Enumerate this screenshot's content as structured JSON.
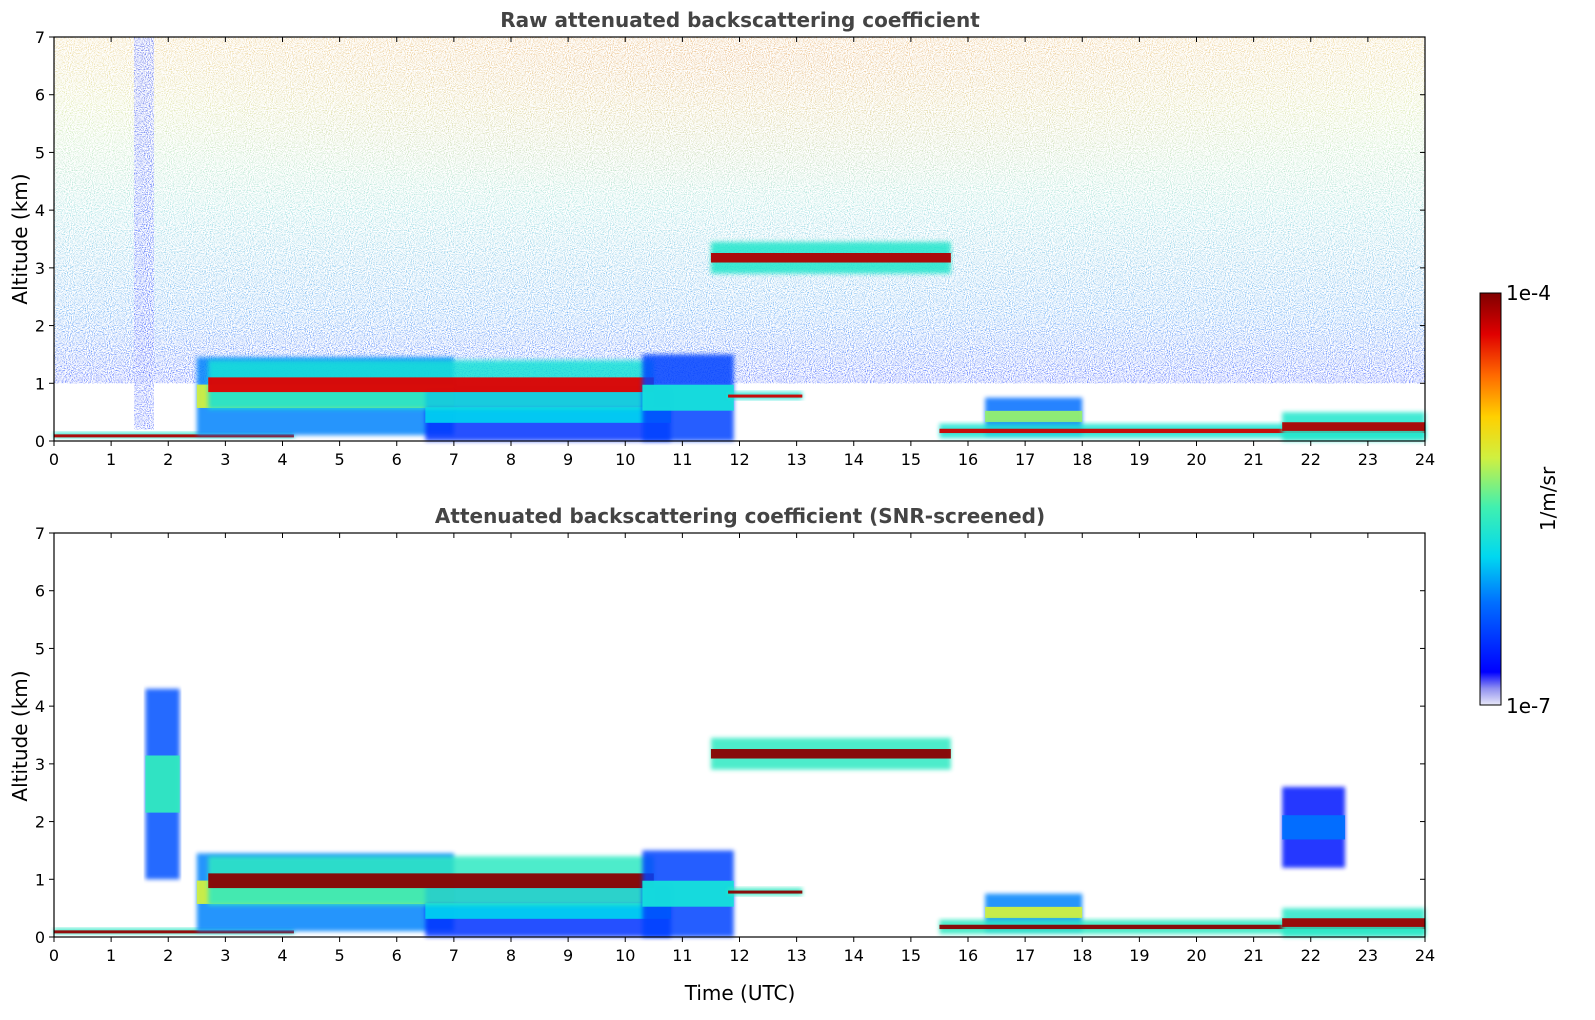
{
  "chart_data": [
    {
      "type": "heatmap",
      "title": "Raw attenuated backscattering coefficient",
      "xlabel": "",
      "ylabel": "Altitude (km)",
      "xlim": [
        0,
        24
      ],
      "ylim": [
        0,
        7
      ],
      "xticks": [
        "0",
        "1",
        "2",
        "3",
        "4",
        "5",
        "6",
        "7",
        "8",
        "9",
        "10",
        "11",
        "12",
        "13",
        "14",
        "15",
        "16",
        "17",
        "18",
        "19",
        "20",
        "21",
        "22",
        "23",
        "24"
      ],
      "yticks": [
        "0",
        "1",
        "2",
        "3",
        "4",
        "5",
        "6",
        "7"
      ],
      "noise_background": true,
      "features": [
        {
          "name": "surface layer",
          "t0": 0.0,
          "t1": 4.2,
          "z0": 0.05,
          "z1": 0.15,
          "level": 0.95
        },
        {
          "name": "boundary layer aerosol",
          "t0": 2.5,
          "t1": 7.0,
          "z0": 0.1,
          "z1": 1.45,
          "level": 0.6
        },
        {
          "name": "aerosol dip layer",
          "t0": 6.5,
          "t1": 10.8,
          "z0": 0.0,
          "z1": 0.9,
          "level": 0.35
        },
        {
          "name": "elevated layer top",
          "t0": 2.7,
          "t1": 10.5,
          "z0": 0.55,
          "z1": 1.4,
          "level": 0.9
        },
        {
          "name": "cloud 11h",
          "t0": 10.3,
          "t1": 11.9,
          "z0": 0.0,
          "z1": 1.5,
          "level": 0.4
        },
        {
          "name": "cloud 12h layer",
          "t0": 11.8,
          "t1": 13.1,
          "z0": 0.72,
          "z1": 0.85,
          "level": 0.92
        },
        {
          "name": "mid cloud",
          "t0": 11.5,
          "t1": 15.7,
          "z0": 2.9,
          "z1": 3.45,
          "level": 0.95
        },
        {
          "name": "afternoon layer",
          "t0": 16.3,
          "t1": 18.0,
          "z0": 0.1,
          "z1": 0.75,
          "level": 0.55
        },
        {
          "name": "night surface layer",
          "t0": 15.5,
          "t1": 24.0,
          "z0": 0.05,
          "z1": 0.3,
          "level": 0.92
        },
        {
          "name": "late surface growth",
          "t0": 21.5,
          "t1": 24.0,
          "z0": 0.0,
          "z1": 0.5,
          "level": 0.95
        }
      ]
    },
    {
      "type": "heatmap",
      "title": "Attenuated backscattering coefficient (SNR-screened)",
      "xlabel": "Time (UTC)",
      "ylabel": "Altitude (km)",
      "xlim": [
        0,
        24
      ],
      "ylim": [
        0,
        7
      ],
      "xticks": [
        "0",
        "1",
        "2",
        "3",
        "4",
        "5",
        "6",
        "7",
        "8",
        "9",
        "10",
        "11",
        "12",
        "13",
        "14",
        "15",
        "16",
        "17",
        "18",
        "19",
        "20",
        "21",
        "22",
        "23",
        "24"
      ],
      "yticks": [
        "0",
        "1",
        "2",
        "3",
        "4",
        "5",
        "6",
        "7"
      ],
      "noise_background": false,
      "features": [
        {
          "name": "surface layer",
          "t0": 0.0,
          "t1": 4.2,
          "z0": 0.05,
          "z1": 0.15,
          "level": 0.98
        },
        {
          "name": "boundary layer aerosol",
          "t0": 2.5,
          "t1": 7.0,
          "z0": 0.1,
          "z1": 1.45,
          "level": 0.6
        },
        {
          "name": "aerosol dip layer",
          "t0": 6.5,
          "t1": 10.8,
          "z0": 0.0,
          "z1": 0.9,
          "level": 0.35
        },
        {
          "name": "elevated layer top",
          "t0": 2.7,
          "t1": 10.5,
          "z0": 0.55,
          "z1": 1.4,
          "level": 0.99
        },
        {
          "name": "cloud 11h",
          "t0": 10.3,
          "t1": 11.9,
          "z0": 0.0,
          "z1": 1.5,
          "level": 0.4
        },
        {
          "name": "cloud 12h layer",
          "t0": 11.8,
          "t1": 13.1,
          "z0": 0.72,
          "z1": 0.85,
          "level": 0.99
        },
        {
          "name": "mid cloud",
          "t0": 11.5,
          "t1": 15.7,
          "z0": 2.9,
          "z1": 3.45,
          "level": 0.99
        },
        {
          "name": "afternoon layer",
          "t0": 16.3,
          "t1": 18.0,
          "z0": 0.1,
          "z1": 0.75,
          "level": 0.6
        },
        {
          "name": "night surface layer",
          "t0": 15.5,
          "t1": 24.0,
          "z0": 0.05,
          "z1": 0.3,
          "level": 0.99
        },
        {
          "name": "late surface growth",
          "t0": 21.5,
          "t1": 24.0,
          "z0": 0.0,
          "z1": 0.5,
          "level": 0.97
        },
        {
          "name": "cirrus streaks 2h",
          "t0": 1.6,
          "t1": 2.2,
          "z0": 1.0,
          "z1": 4.3,
          "level": 0.45
        },
        {
          "name": "cirrus streaks 22h",
          "t0": 21.5,
          "t1": 22.6,
          "z0": 1.2,
          "z1": 2.6,
          "level": 0.25
        }
      ]
    }
  ],
  "colorbar": {
    "label": "1/m/sr",
    "max_label": "1e-4",
    "min_label": "1e-7",
    "colormap": "jet"
  }
}
